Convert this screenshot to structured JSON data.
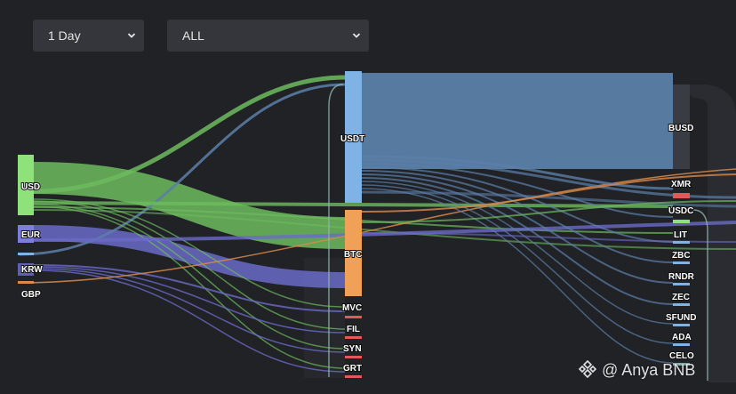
{
  "filters": {
    "range": {
      "value": "1 Day",
      "icon": "chevron-down-icon"
    },
    "asset": {
      "value": "ALL",
      "icon": "chevron-down-icon"
    }
  },
  "colors": {
    "background": "#212226",
    "green": "#6dbb5e",
    "blue": "#5b7fa8",
    "purple": "#6a6ac8",
    "orange": "#d98a4b",
    "usdt": "#7fb2e5",
    "btc": "#f0a057",
    "busd": "#3a3c44"
  },
  "nodes": {
    "sources": [
      "USD",
      "EUR",
      "KRW",
      "GBP"
    ],
    "middle": [
      "USDT",
      "BTC",
      "MVC",
      "FIL",
      "SYN",
      "GRT"
    ],
    "targets": [
      "BUSD",
      "XMR",
      "USDC",
      "LIT",
      "ZBC",
      "RNDR",
      "ZEC",
      "SFUND",
      "ADA",
      "CELO"
    ]
  },
  "watermark": {
    "text": "@ Anya BNB",
    "icon": "binance-logo-icon"
  }
}
